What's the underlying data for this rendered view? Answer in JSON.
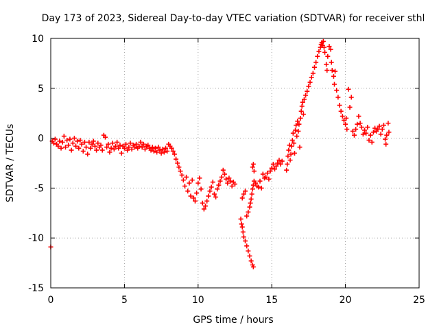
{
  "chart_data": {
    "type": "scatter",
    "title": "Day 173 of 2023, Sidereal Day-to-day VTEC variation (SDTVAR) for receiver sthl",
    "xlabel": "GPS time / hours",
    "ylabel": "SDTVAR / TECUs",
    "xlim": [
      0,
      25
    ],
    "ylim": [
      -15,
      10
    ],
    "xticks": [
      0,
      5,
      10,
      15,
      20,
      25
    ],
    "yticks": [
      -15,
      -10,
      -5,
      0,
      5,
      10
    ],
    "xtick_labels": [
      "0",
      "5",
      "10",
      "15",
      "20",
      "25"
    ],
    "ytick_labels": [
      "-15",
      "-10",
      "-5",
      "0",
      "5",
      "10"
    ],
    "grid": true,
    "marker": "+",
    "series": [
      {
        "name": "SDTVAR",
        "color": "#ff0000",
        "points": [
          [
            0.0,
            -10.9
          ],
          [
            0.1,
            -0.3
          ],
          [
            0.2,
            -0.5
          ],
          [
            0.3,
            -0.1
          ],
          [
            0.4,
            -0.6
          ],
          [
            0.5,
            -0.8
          ],
          [
            0.6,
            -0.3
          ],
          [
            0.7,
            -1.0
          ],
          [
            0.8,
            -0.4
          ],
          [
            0.9,
            0.2
          ],
          [
            1.0,
            -0.9
          ],
          [
            1.1,
            -0.2
          ],
          [
            1.2,
            -0.7
          ],
          [
            1.3,
            -0.1
          ],
          [
            1.4,
            -1.2
          ],
          [
            1.5,
            -0.5
          ],
          [
            1.6,
            0.0
          ],
          [
            1.7,
            -0.8
          ],
          [
            1.8,
            -0.3
          ],
          [
            1.9,
            -1.0
          ],
          [
            2.0,
            -0.2
          ],
          [
            2.1,
            -0.6
          ],
          [
            2.2,
            -1.3
          ],
          [
            2.3,
            -0.4
          ],
          [
            2.4,
            -0.9
          ],
          [
            2.5,
            -1.6
          ],
          [
            2.6,
            -0.4
          ],
          [
            2.7,
            -1.0
          ],
          [
            2.8,
            -0.6
          ],
          [
            2.9,
            -0.3
          ],
          [
            3.0,
            -0.8
          ],
          [
            3.1,
            -1.2
          ],
          [
            3.2,
            -0.5
          ],
          [
            3.3,
            -0.9
          ],
          [
            3.4,
            -0.7
          ],
          [
            3.5,
            -1.2
          ],
          [
            3.6,
            0.3
          ],
          [
            3.7,
            0.1
          ],
          [
            3.8,
            -0.9
          ],
          [
            3.9,
            -0.6
          ],
          [
            4.0,
            -1.4
          ],
          [
            4.1,
            -1.0
          ],
          [
            4.2,
            -0.5
          ],
          [
            4.3,
            -1.1
          ],
          [
            4.4,
            -0.8
          ],
          [
            4.5,
            -0.4
          ],
          [
            4.6,
            -1.0
          ],
          [
            4.7,
            -0.7
          ],
          [
            4.8,
            -1.5
          ],
          [
            4.9,
            -0.8
          ],
          [
            5.0,
            -1.0
          ],
          [
            5.1,
            -0.6
          ],
          [
            5.2,
            -1.2
          ],
          [
            5.3,
            -0.9
          ],
          [
            5.4,
            -0.5
          ],
          [
            5.5,
            -1.1
          ],
          [
            5.6,
            -0.7
          ],
          [
            5.7,
            -0.9
          ],
          [
            5.8,
            -0.6
          ],
          [
            5.9,
            -1.0
          ],
          [
            6.0,
            -0.8
          ],
          [
            6.1,
            -0.4
          ],
          [
            6.2,
            -0.9
          ],
          [
            6.3,
            -0.6
          ],
          [
            6.4,
            -1.1
          ],
          [
            6.5,
            -0.8
          ],
          [
            6.6,
            -0.7
          ],
          [
            6.7,
            -1.0
          ],
          [
            6.8,
            -1.2
          ],
          [
            6.9,
            -0.9
          ],
          [
            7.0,
            -1.3
          ],
          [
            7.1,
            -1.0
          ],
          [
            7.2,
            -1.4
          ],
          [
            7.3,
            -0.9
          ],
          [
            7.4,
            -1.2
          ],
          [
            7.5,
            -1.5
          ],
          [
            7.6,
            -1.1
          ],
          [
            7.7,
            -1.4
          ],
          [
            7.8,
            -1.0
          ],
          [
            7.9,
            -1.3
          ],
          [
            8.0,
            -0.6
          ],
          [
            8.1,
            -0.8
          ],
          [
            8.2,
            -1.0
          ],
          [
            8.3,
            -1.3
          ],
          [
            8.4,
            -1.6
          ],
          [
            8.5,
            -2.1
          ],
          [
            8.6,
            -2.5
          ],
          [
            8.7,
            -2.9
          ],
          [
            8.8,
            -3.3
          ],
          [
            8.9,
            -3.7
          ],
          [
            9.0,
            -4.2
          ],
          [
            9.1,
            -4.8
          ],
          [
            9.2,
            -3.9
          ],
          [
            9.3,
            -5.3
          ],
          [
            9.4,
            -4.5
          ],
          [
            9.5,
            -5.8
          ],
          [
            9.6,
            -4.2
          ],
          [
            9.7,
            -6.0
          ],
          [
            9.8,
            -6.3
          ],
          [
            9.9,
            -5.5
          ],
          [
            10.0,
            -4.5
          ],
          [
            10.1,
            -4.0
          ],
          [
            10.2,
            -5.1
          ],
          [
            10.3,
            -6.5
          ],
          [
            10.4,
            -7.1
          ],
          [
            10.5,
            -6.8
          ],
          [
            10.6,
            -6.3
          ],
          [
            10.7,
            -5.8
          ],
          [
            10.8,
            -5.3
          ],
          [
            10.9,
            -4.9
          ],
          [
            11.0,
            -4.4
          ],
          [
            11.1,
            -5.6
          ],
          [
            11.2,
            -5.9
          ],
          [
            11.3,
            -5.1
          ],
          [
            11.4,
            -4.7
          ],
          [
            11.5,
            -4.3
          ],
          [
            11.6,
            -3.9
          ],
          [
            11.7,
            -3.2
          ],
          [
            11.8,
            -3.6
          ],
          [
            11.9,
            -4.1
          ],
          [
            12.0,
            -4.5
          ],
          [
            12.1,
            -4.0
          ],
          [
            12.2,
            -4.3
          ],
          [
            12.3,
            -4.8
          ],
          [
            12.4,
            -4.4
          ],
          [
            12.5,
            -4.6
          ],
          [
            12.9,
            -8.1
          ],
          [
            12.95,
            -8.6
          ],
          [
            13.0,
            -8.9
          ],
          [
            13.05,
            -9.4
          ],
          [
            13.1,
            -9.9
          ],
          [
            13.2,
            -10.3
          ],
          [
            13.3,
            -10.8
          ],
          [
            13.4,
            -11.3
          ],
          [
            13.5,
            -11.8
          ],
          [
            13.6,
            -12.3
          ],
          [
            13.7,
            -12.7
          ],
          [
            13.75,
            -12.9
          ],
          [
            13.0,
            -6.0
          ],
          [
            13.1,
            -5.6
          ],
          [
            13.2,
            -5.3
          ],
          [
            13.3,
            -7.8
          ],
          [
            13.4,
            -7.4
          ],
          [
            13.5,
            -6.9
          ],
          [
            13.55,
            -6.5
          ],
          [
            13.6,
            -6.1
          ],
          [
            13.65,
            -5.6
          ],
          [
            13.7,
            -5.1
          ],
          [
            13.75,
            -4.7
          ],
          [
            13.8,
            -4.3
          ],
          [
            13.7,
            -2.9
          ],
          [
            13.75,
            -2.6
          ],
          [
            13.8,
            -3.3
          ],
          [
            13.9,
            -4.5
          ],
          [
            14.0,
            -4.8
          ],
          [
            14.1,
            -4.9
          ],
          [
            14.2,
            -4.3
          ],
          [
            14.3,
            -5.0
          ],
          [
            14.4,
            -3.6
          ],
          [
            14.5,
            -4.0
          ],
          [
            14.6,
            -3.9
          ],
          [
            14.7,
            -3.5
          ],
          [
            14.8,
            -4.1
          ],
          [
            14.9,
            -3.3
          ],
          [
            15.0,
            -3.0
          ],
          [
            15.1,
            -2.6
          ],
          [
            15.2,
            -3.1
          ],
          [
            15.3,
            -2.8
          ],
          [
            15.4,
            -2.5
          ],
          [
            15.5,
            -2.2
          ],
          [
            15.6,
            -2.6
          ],
          [
            15.7,
            -2.3
          ],
          [
            16.0,
            -3.2
          ],
          [
            16.05,
            -2.6
          ],
          [
            16.1,
            -1.8
          ],
          [
            16.15,
            -1.2
          ],
          [
            16.2,
            -0.7
          ],
          [
            16.25,
            -2.2
          ],
          [
            16.3,
            -1.6
          ],
          [
            16.35,
            -0.8
          ],
          [
            16.4,
            -0.2
          ],
          [
            16.45,
            0.5
          ],
          [
            16.5,
            -0.5
          ],
          [
            16.55,
            -1.5
          ],
          [
            16.6,
            0.8
          ],
          [
            16.65,
            1.3
          ],
          [
            16.7,
            0.2
          ],
          [
            16.75,
            1.7
          ],
          [
            16.8,
            0.7
          ],
          [
            16.85,
            1.4
          ],
          [
            16.9,
            -0.9
          ],
          [
            16.95,
            2.0
          ],
          [
            17.0,
            2.7
          ],
          [
            17.05,
            3.2
          ],
          [
            17.1,
            3.6
          ],
          [
            17.15,
            2.4
          ],
          [
            17.2,
            3.9
          ],
          [
            17.3,
            4.3
          ],
          [
            17.4,
            4.7
          ],
          [
            17.5,
            5.2
          ],
          [
            17.6,
            5.6
          ],
          [
            17.7,
            6.1
          ],
          [
            17.8,
            6.5
          ],
          [
            17.9,
            7.1
          ],
          [
            18.0,
            7.6
          ],
          [
            18.1,
            8.2
          ],
          [
            18.2,
            8.7
          ],
          [
            18.3,
            9.1
          ],
          [
            18.35,
            9.4
          ],
          [
            18.4,
            9.6
          ],
          [
            18.45,
            9.3
          ],
          [
            18.5,
            9.7
          ],
          [
            18.55,
            9.1
          ],
          [
            18.6,
            8.6
          ],
          [
            18.7,
            7.4
          ],
          [
            18.75,
            6.8
          ],
          [
            18.8,
            8.2
          ],
          [
            18.9,
            9.2
          ],
          [
            19.0,
            8.9
          ],
          [
            19.05,
            7.6
          ],
          [
            19.1,
            6.8
          ],
          [
            19.2,
            6.2
          ],
          [
            19.25,
            5.4
          ],
          [
            19.3,
            6.7
          ],
          [
            19.4,
            4.8
          ],
          [
            19.5,
            4.1
          ],
          [
            19.6,
            3.3
          ],
          [
            19.7,
            2.7
          ],
          [
            19.8,
            2.2
          ],
          [
            19.9,
            1.8
          ],
          [
            20.0,
            1.4
          ],
          [
            20.05,
            2.0
          ],
          [
            20.1,
            0.9
          ],
          [
            20.2,
            4.9
          ],
          [
            20.3,
            3.1
          ],
          [
            20.4,
            4.1
          ],
          [
            20.5,
            0.7
          ],
          [
            20.6,
            0.3
          ],
          [
            20.7,
            0.9
          ],
          [
            20.8,
            1.4
          ],
          [
            20.9,
            2.2
          ],
          [
            21.0,
            1.5
          ],
          [
            21.1,
            1.1
          ],
          [
            21.2,
            0.4
          ],
          [
            21.3,
            0.8
          ],
          [
            21.4,
            0.5
          ],
          [
            21.5,
            1.1
          ],
          [
            21.6,
            -0.2
          ],
          [
            21.7,
            0.3
          ],
          [
            21.8,
            -0.4
          ],
          [
            21.9,
            0.6
          ],
          [
            22.0,
            1.0
          ],
          [
            22.1,
            0.7
          ],
          [
            22.2,
            0.9
          ],
          [
            22.3,
            1.2
          ],
          [
            22.4,
            0.4
          ],
          [
            22.5,
            0.9
          ],
          [
            22.6,
            1.3
          ],
          [
            22.7,
            -0.1
          ],
          [
            22.75,
            -0.6
          ],
          [
            22.8,
            0.3
          ],
          [
            22.9,
            1.5
          ],
          [
            22.95,
            0.6
          ]
        ]
      }
    ]
  }
}
